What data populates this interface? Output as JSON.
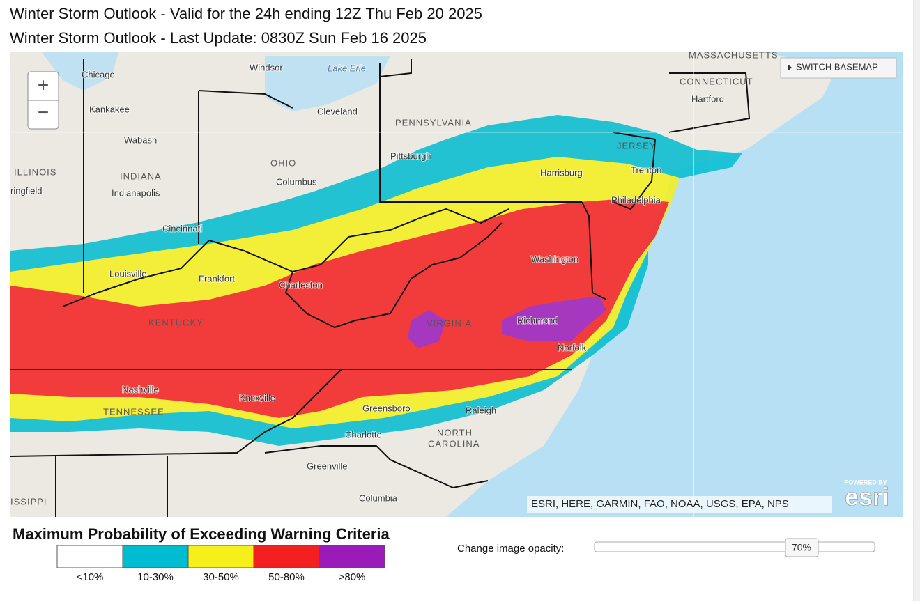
{
  "header": {
    "title": "Winter Storm Outlook - Valid for the 24h ending 12Z Thu Feb 20 2025",
    "subtitle": "Winter Storm Outlook - Last Update: 0830Z Sun Feb 16 2025"
  },
  "map": {
    "zoom_in": "+",
    "zoom_out": "−",
    "switch_basemap": "SWITCH BASEMAP",
    "labels": [
      "Chicago",
      "Windsor",
      "Lake Erie",
      "Cleveland",
      "PENNSYLVANIA",
      "Pittsburgh",
      "OHIO",
      "Columbus",
      "INDIANA",
      "Indianapolis",
      "ILLINOIS",
      "ringfield",
      "Kankakee",
      "Wabash",
      "Cincinnati",
      "Louisville",
      "Frankfort",
      "KENTUCKY",
      "Charleston",
      "VIRGINIA",
      "Richmond",
      "Washington",
      "Harrisburg",
      "Philadelphia",
      "Trenton",
      "JERSEY",
      "Hartford",
      "CONNECTICUT",
      "MASSACHUSETTS",
      "Nashville",
      "Knoxville",
      "TENNESSEE",
      "Greensboro",
      "Raleigh",
      "NORTH",
      "CAROLINA",
      "Charlotte",
      "Greenville",
      "Columbia",
      "Norfolk",
      "ISSIPPI"
    ],
    "attribution": "ESRI, HERE, GARMIN, FAO, NOAA, USGS, EPA, NPS",
    "powered_by": "POWERED BY",
    "logo": "esri"
  },
  "legend": {
    "title": "Maximum Probability of Exceeding Warning Criteria",
    "items": [
      {
        "label": "<10%",
        "color": "#ffffff"
      },
      {
        "label": "10-30%",
        "color": "#00bcd0"
      },
      {
        "label": "30-50%",
        "color": "#f5f01a"
      },
      {
        "label": "50-80%",
        "color": "#f41f1f"
      },
      {
        "label": ">80%",
        "color": "#9a1aba"
      }
    ]
  },
  "opacity": {
    "label": "Change image opacity:",
    "value": "70%"
  }
}
